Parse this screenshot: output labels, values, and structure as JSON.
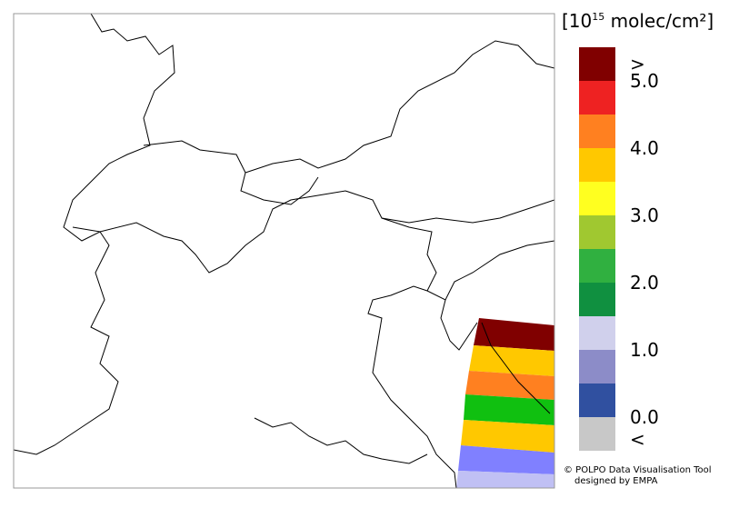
{
  "colorbar": {
    "title_prefix": "[10",
    "title_exponent": "15",
    "title_suffix": " molec/cm²]",
    "colors": [
      "#800000",
      "#ee2222",
      "#ff8020",
      "#ffc800",
      "#ffff20",
      "#a0c830",
      "#30b040",
      "#109040",
      "#d0d0ec",
      "#8c8cc8",
      "#3050a0",
      "#c8c8c8"
    ],
    "labels": [
      ">",
      "5.0",
      "4.0",
      "3.0",
      "2.0",
      "1.0",
      "0.0",
      "<"
    ]
  },
  "credit": {
    "line1": "© POLPO Data Visualisation Tool",
    "line2": "designed by EMPA"
  }
}
